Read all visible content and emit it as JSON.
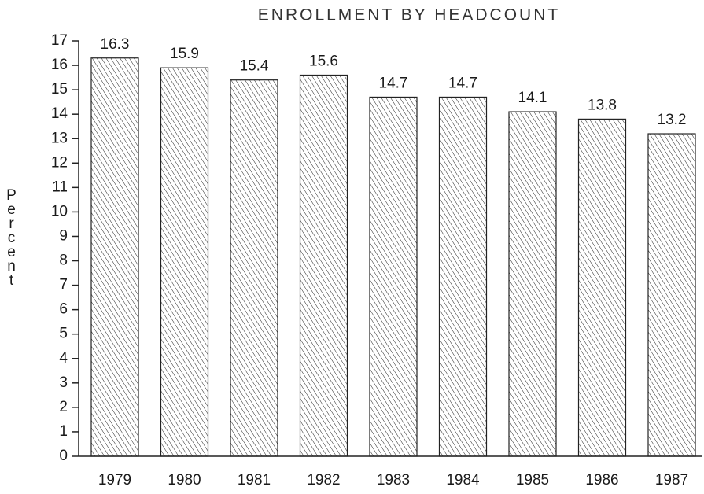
{
  "chart_data": {
    "type": "bar",
    "title": "ENROLLMENT BY HEADCOUNT",
    "y_label": "Percent",
    "categories": [
      "1979",
      "1980",
      "1981",
      "1982",
      "1983",
      "1984",
      "1985",
      "1986",
      "1987"
    ],
    "values": [
      16.3,
      15.9,
      15.4,
      15.6,
      14.7,
      14.7,
      14.1,
      13.8,
      13.2
    ],
    "color": "#222222",
    "ylim": [
      0,
      17
    ],
    "yticks": [
      0,
      1,
      2,
      3,
      4,
      5,
      6,
      7,
      8,
      9,
      10,
      11,
      12,
      13,
      14,
      15,
      16,
      17
    ],
    "grid": false
  }
}
